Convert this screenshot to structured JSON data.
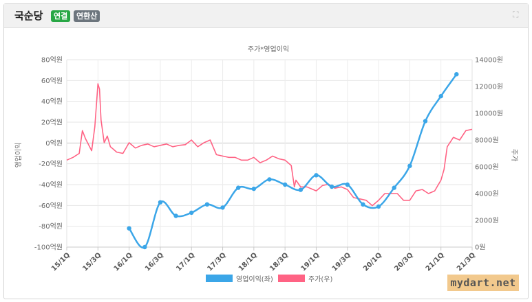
{
  "header": {
    "title": "국순당",
    "badge_consolidated": "연결",
    "badge_annualized": "연환산"
  },
  "colors": {
    "operating_profit": "#3ba6e8",
    "stock_price": "#ff6384",
    "badge_green": "#28a745",
    "badge_gray": "#6c757d"
  },
  "chart_data": {
    "type": "line",
    "title": "주가*영업이익",
    "ylabel_left": "영업이익",
    "ylabel_right": "주가",
    "legend_position": "bottom",
    "grid": true,
    "categories": [
      "15/1Q",
      "15/3Q",
      "16/1Q",
      "16/3Q",
      "17/1Q",
      "17/3Q",
      "18/1Q",
      "18/3Q",
      "19/1Q",
      "19/3Q",
      "20/1Q",
      "20/3Q",
      "21/1Q",
      "21/3Q"
    ],
    "y_left": {
      "min": -100,
      "max": 80,
      "step": 20,
      "ticks": [
        "80억원",
        "60억원",
        "40억원",
        "20억원",
        "0억원",
        "-20억원",
        "-40억원",
        "-60억원",
        "-80억원",
        "-100억원"
      ]
    },
    "y_right": {
      "min": 0,
      "max": 14000,
      "step": 2000,
      "ticks": [
        "14000원",
        "12000원",
        "10000원",
        "8000원",
        "6000원",
        "4000원",
        "2000원",
        "0원"
      ]
    },
    "series": [
      {
        "name": "영업이익(좌)",
        "axis": "left",
        "x": [
          2.0,
          2.5,
          3.0,
          3.5,
          4.0,
          4.5,
          5.0,
          5.5,
          6.0,
          6.5,
          7.0,
          7.5,
          8.0,
          8.5,
          9.0,
          9.5,
          10.0,
          10.5,
          11.0,
          11.5,
          12.0,
          12.5
        ],
        "values": [
          -82,
          -100,
          -57,
          -70,
          -67,
          -59,
          -62,
          -43,
          -44,
          -35,
          -40,
          -45,
          -31,
          -42,
          -40,
          -59,
          -61,
          -43,
          -22,
          21,
          45,
          66
        ]
      },
      {
        "name": "주가(우)",
        "axis": "right",
        "x": [
          0,
          0.2,
          0.4,
          0.5,
          0.6,
          0.8,
          0.9,
          1.0,
          1.05,
          1.1,
          1.2,
          1.3,
          1.4,
          1.5,
          1.6,
          1.8,
          2.0,
          2.2,
          2.4,
          2.6,
          2.8,
          3.0,
          3.2,
          3.4,
          3.6,
          3.8,
          4.0,
          4.2,
          4.4,
          4.6,
          4.8,
          5.0,
          5.2,
          5.4,
          5.6,
          5.8,
          6.0,
          6.2,
          6.4,
          6.6,
          6.8,
          7.0,
          7.2,
          7.3,
          7.35,
          7.5,
          7.7,
          7.9,
          8.0,
          8.2,
          8.4,
          8.6,
          8.8,
          9.0,
          9.2,
          9.4,
          9.6,
          9.8,
          10.0,
          10.2,
          10.4,
          10.6,
          10.8,
          11.0,
          11.2,
          11.4,
          11.6,
          11.8,
          12.0,
          12.1,
          12.2,
          12.4,
          12.6,
          12.8,
          13.0
        ],
        "values": [
          6500,
          6700,
          7000,
          8700,
          8100,
          7200,
          9000,
          12200,
          11800,
          9500,
          7800,
          8300,
          7500,
          7300,
          7100,
          7000,
          7800,
          7400,
          7600,
          7700,
          7500,
          7600,
          7700,
          7500,
          7600,
          7650,
          8000,
          7500,
          7800,
          8000,
          6900,
          6800,
          6700,
          6700,
          6500,
          6500,
          6700,
          6300,
          6500,
          6800,
          6600,
          6500,
          6100,
          4500,
          5000,
          4500,
          4500,
          4300,
          4200,
          4600,
          4700,
          4400,
          4500,
          4300,
          3700,
          3600,
          3500,
          3100,
          3500,
          4000,
          4000,
          4000,
          3500,
          3500,
          4200,
          4300,
          4000,
          4200,
          5000,
          5800,
          7500,
          8200,
          8000,
          8700,
          8800
        ]
      }
    ]
  },
  "watermark": "mydart.net"
}
